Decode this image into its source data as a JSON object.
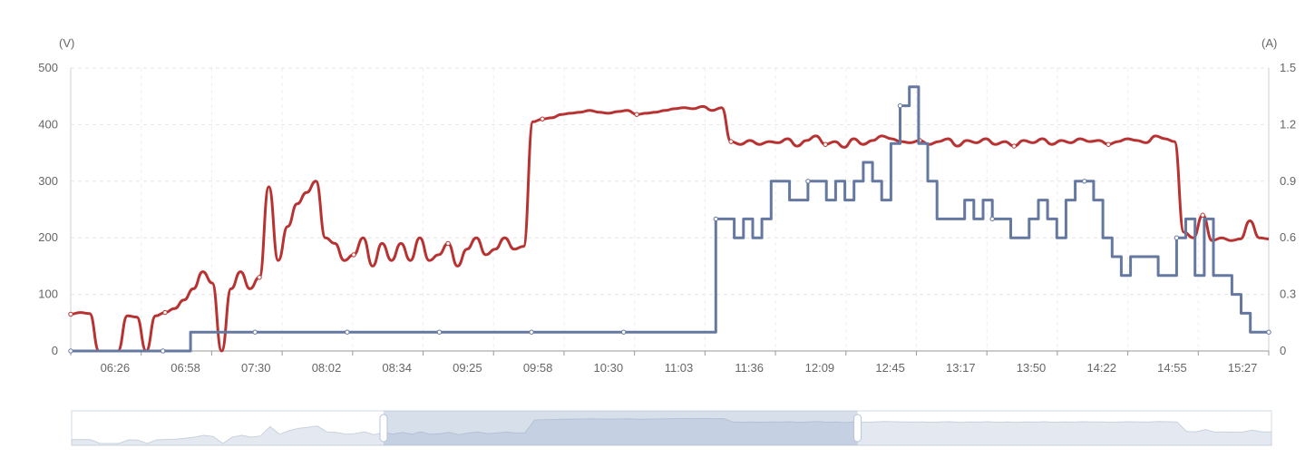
{
  "chart_data": {
    "type": "line",
    "left_axis": {
      "unit_label": "(V)",
      "range": [
        0,
        500
      ],
      "ticks": [
        0,
        100,
        200,
        300,
        400,
        500
      ]
    },
    "right_axis": {
      "unit_label": "(A)",
      "range": [
        0,
        1.5
      ],
      "ticks": [
        "0",
        "0.3",
        "0.6",
        "0.9",
        "1.2",
        "1.5"
      ]
    },
    "x_ticks": [
      "06:26",
      "06:58",
      "07:30",
      "08:02",
      "08:34",
      "09:25",
      "09:58",
      "10:30",
      "11:03",
      "11:36",
      "12:09",
      "12:45",
      "13:17",
      "13:50",
      "14:22",
      "14:55",
      "15:27"
    ],
    "grid": true,
    "legend": "none",
    "series": [
      {
        "axis": "left",
        "color": "#b83232",
        "values": [
          65,
          68,
          66,
          0,
          0,
          0,
          62,
          60,
          0,
          62,
          68,
          75,
          90,
          110,
          140,
          120,
          0,
          110,
          140,
          110,
          130,
          290,
          160,
          220,
          260,
          280,
          300,
          200,
          190,
          160,
          170,
          200,
          150,
          190,
          160,
          190,
          160,
          200,
          160,
          170,
          190,
          150,
          180,
          200,
          170,
          180,
          200,
          180,
          185,
          405,
          410,
          412,
          418,
          420,
          422,
          425,
          422,
          420,
          423,
          425,
          418,
          420,
          422,
          425,
          428,
          430,
          428,
          432,
          425,
          430,
          370,
          365,
          372,
          365,
          370,
          368,
          375,
          362,
          372,
          380,
          365,
          370,
          360,
          375,
          365,
          372,
          380,
          375,
          370,
          368,
          372,
          365,
          370,
          375,
          362,
          372,
          368,
          375,
          365,
          370,
          362,
          372,
          368,
          375,
          365,
          372,
          368,
          375,
          370,
          372,
          365,
          370,
          375,
          372,
          368,
          380,
          375,
          370,
          210,
          200,
          240,
          195,
          200,
          195,
          198,
          230,
          200,
          198
        ]
      },
      {
        "axis": "right",
        "color": "#6478a0",
        "values": [
          0,
          0,
          0,
          0,
          0,
          0,
          0,
          0,
          0,
          0,
          0,
          0,
          0,
          0.1,
          0.1,
          0.1,
          0.1,
          0.1,
          0.1,
          0.1,
          0.1,
          0.1,
          0.1,
          0.1,
          0.1,
          0.1,
          0.1,
          0.1,
          0.1,
          0.1,
          0.1,
          0.1,
          0.1,
          0.1,
          0.1,
          0.1,
          0.1,
          0.1,
          0.1,
          0.1,
          0.1,
          0.1,
          0.1,
          0.1,
          0.1,
          0.1,
          0.1,
          0.1,
          0.1,
          0.1,
          0.1,
          0.1,
          0.1,
          0.1,
          0.1,
          0.1,
          0.1,
          0.1,
          0.1,
          0.1,
          0.1,
          0.1,
          0.1,
          0.1,
          0.1,
          0.1,
          0.1,
          0.1,
          0.1,
          0.1,
          0.7,
          0.7,
          0.6,
          0.7,
          0.6,
          0.7,
          0.9,
          0.9,
          0.8,
          0.8,
          0.9,
          0.9,
          0.8,
          0.9,
          0.8,
          0.9,
          1.0,
          0.9,
          0.8,
          1.1,
          1.3,
          1.4,
          1.1,
          0.9,
          0.7,
          0.7,
          0.7,
          0.8,
          0.7,
          0.8,
          0.7,
          0.7,
          0.6,
          0.6,
          0.7,
          0.8,
          0.7,
          0.6,
          0.8,
          0.9,
          0.9,
          0.8,
          0.6,
          0.5,
          0.4,
          0.5,
          0.5,
          0.5,
          0.4,
          0.4,
          0.6,
          0.7,
          0.4,
          0.7,
          0.4,
          0.4,
          0.3,
          0.2,
          0.1,
          0.1,
          0.1
        ]
      }
    ]
  },
  "data_zoom": {
    "range_start": 0.26,
    "range_end": 0.655
  }
}
